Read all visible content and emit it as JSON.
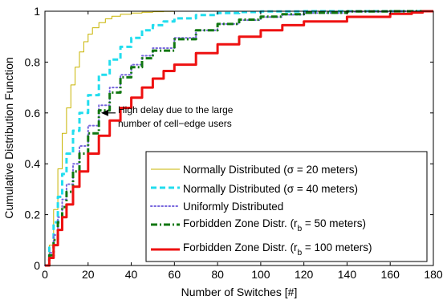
{
  "chart_data": {
    "type": "line",
    "title": "",
    "xlabel": "Number of Switches [#]",
    "ylabel": "Cumulative Distribution Function",
    "xlim": [
      0,
      180
    ],
    "ylim": [
      0,
      1
    ],
    "xticks": [
      0,
      20,
      40,
      60,
      80,
      100,
      120,
      140,
      160,
      180
    ],
    "yticks": [
      0,
      0.2,
      0.4,
      0.6,
      0.8,
      1
    ],
    "xtick_labels": [
      "0",
      "20",
      "40",
      "60",
      "80",
      "100",
      "120",
      "140",
      "160",
      "180"
    ],
    "ytick_labels": [
      "0",
      "0.2",
      "0.4",
      "0.6",
      "0.8",
      "1"
    ],
    "grid": false,
    "legend_position": "bottom-right",
    "annotation": {
      "line1": "High delay due to the large",
      "line2": "number of cell−edge users",
      "arrow_tip": [
        26,
        0.6
      ]
    },
    "series": [
      {
        "name": "Normally Distributed (σ = 20 meters)",
        "color": "#c8b400",
        "dash": "solid",
        "width": 1,
        "x": [
          0,
          2,
          4,
          6,
          8,
          10,
          12,
          14,
          16,
          18,
          20,
          22,
          25,
          28,
          31,
          35,
          40,
          45,
          50,
          55,
          60,
          70,
          80,
          100,
          120,
          140,
          160,
          180
        ],
        "y": [
          0,
          0.08,
          0.22,
          0.38,
          0.52,
          0.62,
          0.71,
          0.78,
          0.84,
          0.88,
          0.91,
          0.935,
          0.955,
          0.97,
          0.98,
          0.988,
          0.993,
          0.996,
          0.998,
          0.999,
          1,
          1,
          1,
          1,
          1,
          1,
          1,
          1
        ]
      },
      {
        "name": "Normally Distributed (σ = 40 meters)",
        "color": "#22ddee",
        "dash": "dash",
        "width": 3,
        "x": [
          0,
          2,
          4,
          6,
          8,
          10,
          13,
          16,
          20,
          25,
          30,
          35,
          40,
          45,
          50,
          55,
          60,
          70,
          80,
          90,
          100,
          120,
          140,
          160,
          175,
          180
        ],
        "y": [
          0,
          0.07,
          0.17,
          0.27,
          0.36,
          0.44,
          0.53,
          0.6,
          0.67,
          0.75,
          0.81,
          0.86,
          0.895,
          0.925,
          0.945,
          0.96,
          0.972,
          0.985,
          0.993,
          0.997,
          0.999,
          1,
          1,
          1,
          1,
          1
        ]
      },
      {
        "name": "Uniformly Distributed",
        "color": "#7766dd",
        "dash": "dot",
        "width": 2,
        "x": [
          0,
          2,
          4,
          6,
          8,
          10,
          13,
          16,
          20,
          25,
          30,
          35,
          40,
          45,
          50,
          60,
          70,
          80,
          90,
          100,
          110,
          120,
          140,
          160,
          175,
          180
        ],
        "y": [
          0,
          0.05,
          0.12,
          0.19,
          0.26,
          0.32,
          0.4,
          0.47,
          0.55,
          0.63,
          0.7,
          0.75,
          0.79,
          0.825,
          0.855,
          0.895,
          0.925,
          0.95,
          0.965,
          0.977,
          0.986,
          0.993,
          0.998,
          1,
          1,
          1
        ]
      },
      {
        "name": "Forbidden Zone Distr. (r_b = 50 meters)",
        "label_main": "Forbidden Zone Distr. (r",
        "label_sub": "b",
        "label_tail": " = 50 meters)",
        "color": "#117711",
        "dash": "dashdot",
        "width": 3,
        "x": [
          0,
          2,
          4,
          6,
          8,
          10,
          13,
          16,
          20,
          25,
          30,
          35,
          40,
          45,
          50,
          60,
          70,
          80,
          90,
          100,
          110,
          120,
          140,
          160,
          175,
          180
        ],
        "y": [
          0,
          0.04,
          0.1,
          0.17,
          0.23,
          0.29,
          0.37,
          0.44,
          0.52,
          0.61,
          0.68,
          0.74,
          0.78,
          0.815,
          0.845,
          0.89,
          0.925,
          0.95,
          0.967,
          0.979,
          0.988,
          0.994,
          0.999,
          1,
          1,
          1
        ]
      },
      {
        "name": "Forbidden Zone Distr. (r_b = 100 meters)",
        "label_main": "Forbidden Zone Distr. (r",
        "label_sub": "b",
        "label_tail": " = 100 meters)",
        "color": "#ee1111",
        "dash": "solid",
        "width": 3,
        "x": [
          0,
          2,
          4,
          6,
          8,
          10,
          13,
          16,
          20,
          25,
          30,
          35,
          40,
          45,
          50,
          55,
          60,
          70,
          80,
          90,
          100,
          110,
          120,
          140,
          160,
          170,
          175,
          180
        ],
        "y": [
          0,
          0.03,
          0.08,
          0.14,
          0.19,
          0.24,
          0.31,
          0.37,
          0.44,
          0.51,
          0.57,
          0.62,
          0.66,
          0.7,
          0.735,
          0.765,
          0.79,
          0.835,
          0.87,
          0.9,
          0.925,
          0.945,
          0.96,
          0.978,
          0.99,
          0.995,
          1,
          1
        ]
      }
    ]
  }
}
